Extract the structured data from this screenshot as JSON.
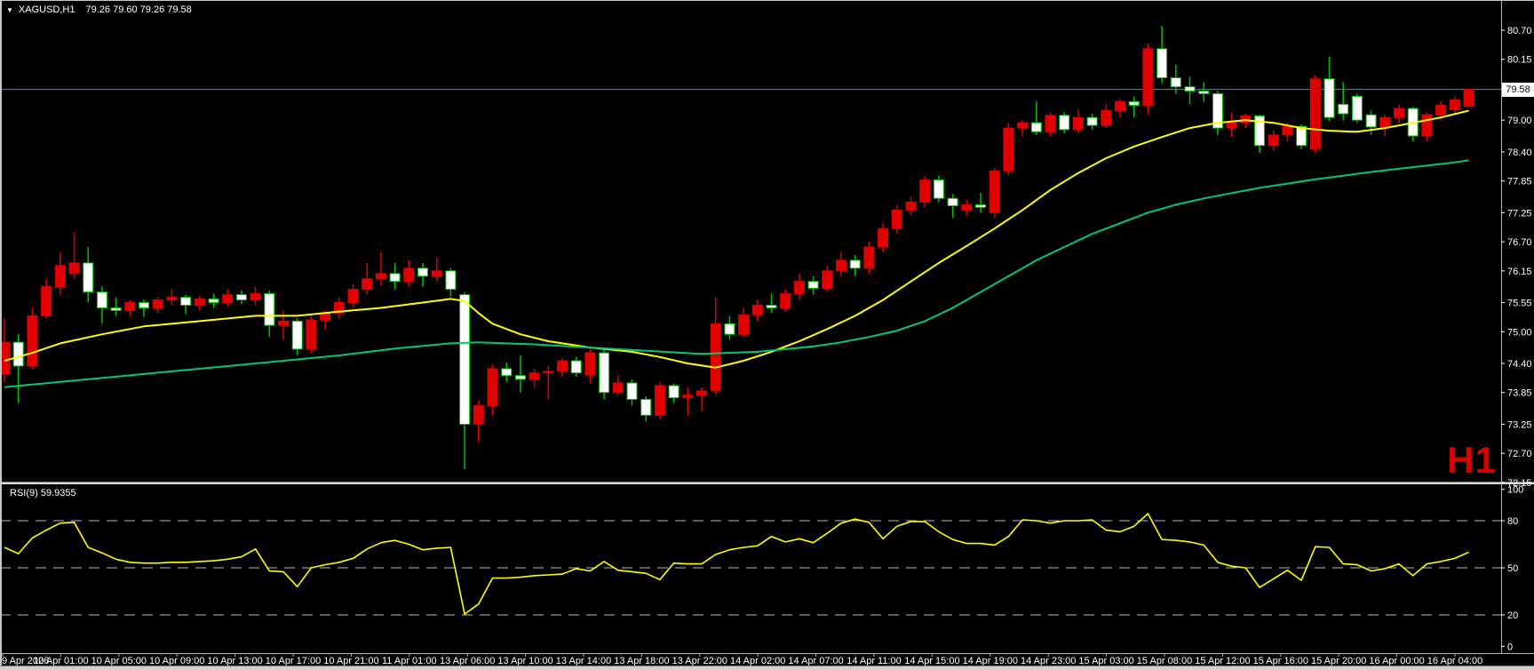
{
  "header": {
    "dropdown_icon": "▼",
    "symbol_title": "XAGUSD,H1",
    "ohlc": "79.26 79.60 79.26 79.58"
  },
  "timeframe_watermark": "H1",
  "price_axis": {
    "current_price": "79.58",
    "ticks": [
      {
        "label": "80.70",
        "value": 80.7
      },
      {
        "label": "80.15",
        "value": 80.15
      },
      {
        "label": "79.00",
        "value": 79.0
      },
      {
        "label": "78.40",
        "value": 78.4
      },
      {
        "label": "77.85",
        "value": 77.85
      },
      {
        "label": "77.25",
        "value": 77.25
      },
      {
        "label": "76.70",
        "value": 76.7
      },
      {
        "label": "76.15",
        "value": 76.15
      },
      {
        "label": "75.55",
        "value": 75.55
      },
      {
        "label": "75.00",
        "value": 75.0
      },
      {
        "label": "74.40",
        "value": 74.4
      },
      {
        "label": "73.85",
        "value": 73.85
      },
      {
        "label": "73.25",
        "value": 73.25
      },
      {
        "label": "72.70",
        "value": 72.7
      },
      {
        "label": "72.15",
        "value": 72.15
      }
    ]
  },
  "time_axis": {
    "labels": [
      "9 Apr 2026",
      "10 Apr 01:00",
      "10 Apr 05:00",
      "10 Apr 09:00",
      "10 Apr 13:00",
      "10 Apr 17:00",
      "10 Apr 21:00",
      "11 Apr 01:00",
      "13 Apr 06:00",
      "13 Apr 10:00",
      "13 Apr 14:00",
      "13 Apr 18:00",
      "13 Apr 22:00",
      "14 Apr 02:00",
      "14 Apr 07:00",
      "14 Apr 11:00",
      "14 Apr 15:00",
      "14 Apr 19:00",
      "14 Apr 23:00",
      "15 Apr 03:00",
      "15 Apr 08:00",
      "15 Apr 12:00",
      "15 Apr 16:00",
      "15 Apr 20:00",
      "16 Apr 00:00",
      "16 Apr 04:00"
    ]
  },
  "rsi": {
    "label": "RSI(9) 59.9355",
    "current_value": 59.9355,
    "levels": [
      {
        "label": "100",
        "value": 100,
        "dashed": false
      },
      {
        "label": "80",
        "value": 80,
        "dashed": true
      },
      {
        "label": "50",
        "value": 50,
        "dashed": true
      },
      {
        "label": "20",
        "value": 20,
        "dashed": true
      },
      {
        "label": "0",
        "value": 0,
        "dashed": false
      }
    ]
  },
  "colors": {
    "background": "#000000",
    "bull": "#e00000",
    "bear_fill": "#ffffff",
    "bear_border": "#00c000",
    "ma_fast": "#ffff00",
    "ma_slow": "#00c878",
    "rsi_line": "#ffff00",
    "rsi_grid": "#b8b8b8",
    "price_line": "#708090",
    "axis_border": "#b0b0b0",
    "axis_text": "#ffffff"
  },
  "chart_data": {
    "type": "candlestick",
    "title": "XAGUSD,H1",
    "symbol": "XAGUSD",
    "timeframe": "H1",
    "ohlc_display": {
      "open": "79.26",
      "high": "79.60",
      "low": "79.26",
      "close": "79.58"
    },
    "current_price": 79.58,
    "ylim": [
      72.15,
      80.7
    ],
    "x_range_dates": [
      "9 Apr 2026",
      "16 Apr 2026 06:00"
    ],
    "grid": false,
    "candles": [
      [
        74.2,
        75.25,
        74.05,
        74.8
      ],
      [
        74.8,
        74.95,
        73.65,
        74.35
      ],
      [
        74.35,
        75.45,
        74.3,
        75.3
      ],
      [
        75.3,
        76.0,
        75.25,
        75.85
      ],
      [
        75.85,
        76.5,
        75.7,
        76.25
      ],
      [
        76.1,
        76.87,
        76.0,
        76.3
      ],
      [
        76.3,
        76.6,
        75.55,
        75.75
      ],
      [
        75.75,
        75.85,
        75.15,
        75.45
      ],
      [
        75.45,
        75.65,
        75.3,
        75.4
      ],
      [
        75.4,
        75.6,
        75.3,
        75.55
      ],
      [
        75.55,
        75.6,
        75.28,
        75.45
      ],
      [
        75.45,
        75.65,
        75.35,
        75.6
      ],
      [
        75.6,
        75.8,
        75.5,
        75.65
      ],
      [
        75.65,
        75.7,
        75.33,
        75.5
      ],
      [
        75.5,
        75.68,
        75.4,
        75.62
      ],
      [
        75.62,
        75.72,
        75.45,
        75.55
      ],
      [
        75.55,
        75.8,
        75.48,
        75.7
      ],
      [
        75.7,
        75.78,
        75.52,
        75.6
      ],
      [
        75.6,
        75.85,
        75.5,
        75.72
      ],
      [
        75.72,
        75.78,
        74.9,
        75.12
      ],
      [
        75.12,
        75.4,
        74.85,
        75.2
      ],
      [
        75.2,
        75.25,
        74.55,
        74.67
      ],
      [
        74.67,
        75.3,
        74.6,
        75.22
      ],
      [
        75.22,
        75.4,
        75.05,
        75.35
      ],
      [
        75.35,
        75.65,
        75.25,
        75.55
      ],
      [
        75.55,
        75.9,
        75.45,
        75.8
      ],
      [
        75.8,
        76.3,
        75.7,
        76.0
      ],
      [
        76.0,
        76.5,
        75.88,
        76.1
      ],
      [
        76.1,
        76.3,
        75.8,
        75.95
      ],
      [
        75.95,
        76.35,
        75.85,
        76.2
      ],
      [
        76.2,
        76.3,
        75.85,
        76.05
      ],
      [
        76.05,
        76.4,
        75.95,
        76.15
      ],
      [
        76.15,
        76.2,
        75.65,
        75.8
      ],
      [
        75.7,
        75.75,
        72.4,
        73.25
      ],
      [
        73.25,
        73.7,
        72.92,
        73.6
      ],
      [
        73.6,
        74.38,
        73.42,
        74.3
      ],
      [
        74.3,
        74.42,
        74.05,
        74.17
      ],
      [
        74.17,
        74.55,
        73.85,
        74.1
      ],
      [
        74.1,
        74.3,
        73.95,
        74.22
      ],
      [
        74.22,
        74.35,
        73.72,
        74.25
      ],
      [
        74.25,
        74.5,
        74.15,
        74.45
      ],
      [
        74.45,
        74.52,
        74.15,
        74.22
      ],
      [
        74.18,
        74.68,
        74.02,
        74.6
      ],
      [
        74.6,
        74.65,
        73.72,
        73.85
      ],
      [
        73.85,
        74.18,
        73.8,
        74.03
      ],
      [
        74.03,
        74.1,
        73.6,
        73.72
      ],
      [
        73.72,
        73.78,
        73.3,
        73.42
      ],
      [
        73.42,
        74.05,
        73.35,
        73.98
      ],
      [
        73.98,
        74.02,
        73.65,
        73.75
      ],
      [
        73.75,
        73.95,
        73.42,
        73.8
      ],
      [
        73.8,
        73.95,
        73.5,
        73.88
      ],
      [
        73.88,
        75.65,
        73.8,
        75.15
      ],
      [
        75.15,
        75.3,
        74.85,
        74.95
      ],
      [
        74.95,
        75.45,
        74.9,
        75.32
      ],
      [
        75.32,
        75.6,
        75.2,
        75.5
      ],
      [
        75.5,
        75.72,
        75.35,
        75.45
      ],
      [
        75.45,
        75.8,
        75.38,
        75.72
      ],
      [
        75.72,
        76.1,
        75.6,
        75.95
      ],
      [
        75.95,
        76.05,
        75.7,
        75.82
      ],
      [
        75.82,
        76.25,
        75.75,
        76.15
      ],
      [
        76.15,
        76.5,
        76.05,
        76.35
      ],
      [
        76.35,
        76.45,
        76.05,
        76.2
      ],
      [
        76.2,
        76.7,
        76.1,
        76.6
      ],
      [
        76.6,
        77.05,
        76.5,
        76.95
      ],
      [
        76.95,
        77.4,
        76.85,
        77.3
      ],
      [
        77.3,
        77.55,
        77.2,
        77.45
      ],
      [
        77.45,
        77.95,
        77.35,
        77.87
      ],
      [
        77.87,
        77.95,
        77.45,
        77.52
      ],
      [
        77.52,
        77.6,
        77.15,
        77.38
      ],
      [
        77.3,
        77.5,
        77.2,
        77.4
      ],
      [
        77.4,
        77.62,
        77.25,
        77.35
      ],
      [
        77.25,
        78.1,
        77.15,
        78.04
      ],
      [
        78.04,
        78.95,
        77.95,
        78.85
      ],
      [
        78.85,
        79.0,
        78.7,
        78.95
      ],
      [
        78.95,
        79.35,
        78.72,
        78.78
      ],
      [
        78.78,
        79.15,
        78.7,
        79.09
      ],
      [
        79.09,
        79.15,
        78.75,
        78.82
      ],
      [
        78.82,
        79.2,
        78.75,
        79.05
      ],
      [
        79.05,
        79.12,
        78.82,
        78.9
      ],
      [
        78.9,
        79.3,
        78.85,
        79.18
      ],
      [
        79.18,
        79.4,
        79.05,
        79.35
      ],
      [
        79.35,
        79.45,
        79.05,
        79.28
      ],
      [
        79.28,
        80.45,
        79.1,
        80.35
      ],
      [
        80.35,
        80.78,
        79.7,
        79.8
      ],
      [
        79.8,
        80.05,
        79.5,
        79.63
      ],
      [
        79.63,
        79.82,
        79.3,
        79.55
      ],
      [
        79.55,
        79.72,
        79.35,
        79.5
      ],
      [
        79.5,
        79.55,
        78.72,
        78.85
      ],
      [
        78.85,
        79.15,
        78.68,
        78.95
      ],
      [
        78.95,
        79.12,
        78.85,
        79.08
      ],
      [
        79.08,
        79.1,
        78.38,
        78.52
      ],
      [
        78.52,
        78.8,
        78.42,
        78.72
      ],
      [
        78.72,
        78.95,
        78.6,
        78.88
      ],
      [
        78.88,
        78.92,
        78.45,
        78.52
      ],
      [
        78.45,
        79.85,
        78.38,
        79.78
      ],
      [
        79.78,
        80.2,
        78.98,
        79.05
      ],
      [
        79.3,
        79.72,
        79.0,
        79.12
      ],
      [
        79.45,
        79.5,
        78.95,
        79.0
      ],
      [
        79.1,
        79.18,
        78.72,
        78.87
      ],
      [
        78.87,
        79.1,
        78.7,
        79.05
      ],
      [
        79.05,
        79.3,
        78.95,
        79.22
      ],
      [
        79.22,
        79.25,
        78.6,
        78.7
      ],
      [
        78.7,
        79.15,
        78.6,
        79.1
      ],
      [
        79.1,
        79.35,
        79.0,
        79.28
      ],
      [
        79.2,
        79.45,
        79.1,
        79.38
      ],
      [
        79.26,
        79.6,
        79.26,
        79.58
      ]
    ],
    "ma_fast": {
      "name": "fast MA (yellow)",
      "points": [
        [
          0,
          74.45
        ],
        [
          2,
          74.6
        ],
        [
          4,
          74.78
        ],
        [
          7,
          74.95
        ],
        [
          10,
          75.1
        ],
        [
          14,
          75.2
        ],
        [
          18,
          75.3
        ],
        [
          21,
          75.3
        ],
        [
          24,
          75.38
        ],
        [
          27,
          75.45
        ],
        [
          30,
          75.55
        ],
        [
          32,
          75.62
        ],
        [
          33,
          75.58
        ],
        [
          34,
          75.35
        ],
        [
          35,
          75.15
        ],
        [
          37,
          74.95
        ],
        [
          39,
          74.82
        ],
        [
          42,
          74.7
        ],
        [
          45,
          74.62
        ],
        [
          47,
          74.52
        ],
        [
          49,
          74.4
        ],
        [
          51,
          74.32
        ],
        [
          53,
          74.45
        ],
        [
          55,
          74.62
        ],
        [
          57,
          74.82
        ],
        [
          59,
          75.05
        ],
        [
          61,
          75.3
        ],
        [
          63,
          75.6
        ],
        [
          65,
          75.95
        ],
        [
          67,
          76.3
        ],
        [
          69,
          76.62
        ],
        [
          71,
          76.95
        ],
        [
          73,
          77.3
        ],
        [
          75,
          77.68
        ],
        [
          77,
          78.0
        ],
        [
          79,
          78.28
        ],
        [
          81,
          78.5
        ],
        [
          83,
          78.68
        ],
        [
          85,
          78.85
        ],
        [
          87,
          78.95
        ],
        [
          89,
          79.0
        ],
        [
          91,
          78.95
        ],
        [
          93,
          78.85
        ],
        [
          95,
          78.8
        ],
        [
          97,
          78.78
        ],
        [
          99,
          78.85
        ],
        [
          101,
          78.95
        ],
        [
          103,
          79.05
        ],
        [
          105,
          79.18
        ]
      ]
    },
    "ma_slow": {
      "name": "slow MA (green)",
      "points": [
        [
          0,
          73.95
        ],
        [
          4,
          74.05
        ],
        [
          8,
          74.15
        ],
        [
          12,
          74.25
        ],
        [
          16,
          74.35
        ],
        [
          20,
          74.45
        ],
        [
          24,
          74.55
        ],
        [
          28,
          74.68
        ],
        [
          32,
          74.78
        ],
        [
          34,
          74.8
        ],
        [
          38,
          74.76
        ],
        [
          42,
          74.7
        ],
        [
          46,
          74.64
        ],
        [
          50,
          74.58
        ],
        [
          54,
          74.62
        ],
        [
          58,
          74.72
        ],
        [
          60,
          74.8
        ],
        [
          62,
          74.9
        ],
        [
          64,
          75.02
        ],
        [
          66,
          75.2
        ],
        [
          68,
          75.45
        ],
        [
          70,
          75.75
        ],
        [
          72,
          76.05
        ],
        [
          74,
          76.35
        ],
        [
          76,
          76.6
        ],
        [
          78,
          76.85
        ],
        [
          80,
          77.05
        ],
        [
          82,
          77.25
        ],
        [
          84,
          77.4
        ],
        [
          86,
          77.52
        ],
        [
          88,
          77.62
        ],
        [
          90,
          77.72
        ],
        [
          92,
          77.8
        ],
        [
          94,
          77.88
        ],
        [
          96,
          77.95
        ],
        [
          98,
          78.02
        ],
        [
          100,
          78.08
        ],
        [
          102,
          78.14
        ],
        [
          104,
          78.2
        ],
        [
          105,
          78.24
        ]
      ]
    },
    "rsi_values": [
      63,
      59,
      69,
      74,
      78.5,
      79,
      63,
      59.5,
      55.5,
      53.5,
      53,
      53,
      53.5,
      53.5,
      54,
      54.5,
      55.5,
      57,
      62,
      48,
      47.5,
      38,
      50,
      52,
      53.5,
      56,
      62,
      66,
      67.5,
      65,
      61.5,
      62.5,
      63,
      20.5,
      27,
      43.5,
      43.5,
      44,
      45,
      45.5,
      46,
      49.5,
      48,
      54,
      48.5,
      47.5,
      46.5,
      42.5,
      53,
      52.5,
      52.5,
      58.5,
      61.5,
      63,
      64,
      70,
      66.5,
      68.5,
      66,
      72,
      78.5,
      81,
      79,
      68.5,
      76.5,
      79.5,
      79.5,
      73,
      68,
      65.5,
      65.5,
      64.5,
      70,
      80.5,
      80,
      78.5,
      80,
      80,
      80.5,
      74,
      73,
      76.5,
      84.5,
      68,
      67.5,
      66.5,
      64.5,
      53.5,
      51,
      50,
      37.5,
      43,
      48.5,
      42,
      63.5,
      63,
      52.5,
      52,
      48,
      49.5,
      52.5,
      45,
      52.5,
      54,
      56,
      59.94
    ]
  }
}
